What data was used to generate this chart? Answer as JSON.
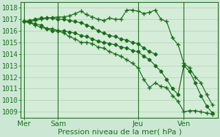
{
  "background_color": "#cce8d4",
  "plot_bg_color": "#d4ecd8",
  "grid_color": "#a8c8a8",
  "line_color": "#1a6e1a",
  "title": "Pression niveau de la mer( hPa )",
  "day_labels": [
    "Mer",
    "Sam",
    "Jeu",
    "Ven"
  ],
  "day_positions": [
    0,
    6,
    20,
    28
  ],
  "xlim": [
    -0.5,
    34
  ],
  "ylim": [
    1008.5,
    1018.5
  ],
  "yticks": [
    1009,
    1010,
    1011,
    1012,
    1013,
    1014,
    1015,
    1016,
    1017,
    1018
  ],
  "series": [
    {
      "x": [
        0,
        1,
        2,
        3,
        4,
        5,
        6,
        7,
        8,
        9,
        10,
        11,
        12,
        13,
        14,
        15,
        16,
        17,
        18,
        19,
        20,
        21,
        22,
        23,
        24,
        25,
        26,
        27,
        28,
        29,
        30,
        31,
        32,
        33
      ],
      "y": [
        1016.8,
        1016.75,
        1016.6,
        1016.5,
        1016.2,
        1016.0,
        1016.0,
        1016.0,
        1015.9,
        1015.8,
        1015.6,
        1015.5,
        1015.3,
        1015.1,
        1015.0,
        1014.9,
        1014.8,
        1014.6,
        1014.5,
        1014.3,
        1014.2,
        1013.8,
        1013.5,
        1013.0,
        1012.5,
        1011.8,
        1011.0,
        1010.5,
        1013.0,
        1012.5,
        1011.5,
        1010.4,
        1009.5,
        1008.9
      ],
      "marker": "D",
      "markersize": 2.5,
      "linewidth": 0.9
    },
    {
      "x": [
        0,
        1,
        2,
        3,
        4,
        5,
        6,
        7,
        8,
        9,
        10,
        11,
        12,
        13,
        14,
        15,
        16,
        17,
        18,
        19,
        20,
        21,
        22,
        23,
        24,
        25,
        26,
        27,
        28,
        29,
        30,
        31,
        32,
        33
      ],
      "y": [
        1016.8,
        1016.8,
        1016.9,
        1017.0,
        1017.1,
        1017.15,
        1017.2,
        1017.2,
        1017.3,
        1017.5,
        1017.7,
        1017.4,
        1017.2,
        1017.0,
        1016.9,
        1017.1,
        1017.0,
        1017.0,
        1017.8,
        1017.8,
        1017.7,
        1017.5,
        1017.6,
        1017.8,
        1017.0,
        1016.8,
        1015.4,
        1014.8,
        1013.2,
        1012.8,
        1012.0,
        1011.5,
        1010.5,
        1009.6
      ],
      "marker": "+",
      "markersize": 4,
      "linewidth": 0.9
    },
    {
      "x": [
        0,
        1,
        2,
        3,
        4,
        5,
        6,
        7,
        8,
        9,
        10,
        11,
        12,
        13,
        14,
        15,
        16,
        17,
        18,
        19,
        20,
        21,
        22,
        23,
        24,
        25,
        26,
        27,
        28,
        29,
        30,
        31,
        32,
        33
      ],
      "y": [
        1016.8,
        1016.7,
        1016.5,
        1016.3,
        1016.2,
        1016.2,
        1016.0,
        1015.8,
        1015.5,
        1015.3,
        1015.0,
        1015.0,
        1014.9,
        1014.6,
        1014.5,
        1014.2,
        1014.0,
        1013.8,
        1013.5,
        1013.2,
        1012.8,
        1011.8,
        1011.1,
        1011.5,
        1011.2,
        1011.1,
        1010.4,
        1009.9,
        1009.0,
        1009.1,
        1009.1,
        1009.0,
        1008.9,
        1008.8
      ],
      "marker": "+",
      "markersize": 4,
      "linewidth": 0.9
    },
    {
      "x": [
        0,
        1,
        2,
        3,
        4,
        5,
        6,
        7,
        8,
        9,
        10,
        11,
        12,
        13,
        14,
        15,
        16,
        17,
        18,
        19,
        20,
        21,
        22,
        23
      ],
      "y": [
        1016.8,
        1016.9,
        1017.0,
        1017.1,
        1017.1,
        1017.1,
        1017.0,
        1017.0,
        1016.9,
        1016.8,
        1016.7,
        1016.5,
        1016.3,
        1016.0,
        1015.8,
        1015.6,
        1015.5,
        1015.3,
        1015.2,
        1015.0,
        1014.9,
        1014.5,
        1014.2,
        1014.0
      ],
      "marker": "D",
      "markersize": 2.5,
      "linewidth": 0.9
    }
  ],
  "vline_positions": [
    0,
    6,
    20,
    28
  ],
  "xlabel_fontsize": 8,
  "ytick_fontsize": 7,
  "xtick_fontsize": 7.5
}
